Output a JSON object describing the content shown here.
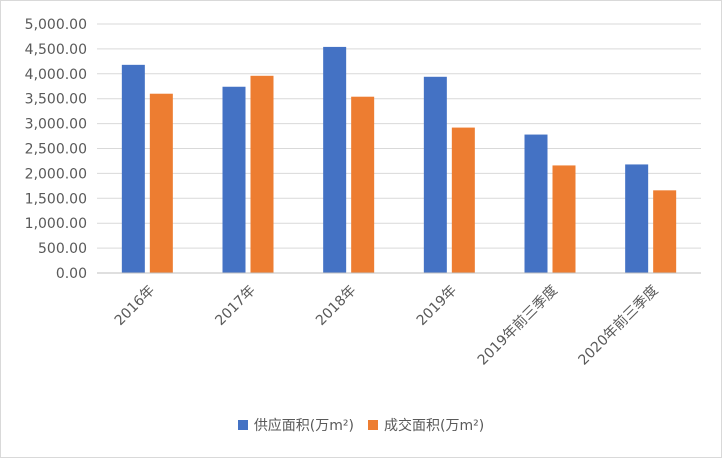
{
  "chart_data": {
    "type": "bar",
    "categories": [
      "2016年",
      "2017年",
      "2018年",
      "2019年",
      "2019年前三季度",
      "2020年前三季度"
    ],
    "series": [
      {
        "name": "供应面积(万m²)",
        "color": "#4472c4",
        "values": [
          4180,
          3740,
          4540,
          3940,
          2780,
          2180
        ]
      },
      {
        "name": "成交面积(万m²)",
        "color": "#ed7d31",
        "values": [
          3600,
          3960,
          3540,
          2920,
          2160,
          1660
        ]
      }
    ],
    "ylim": [
      0,
      5000
    ],
    "yticks": [
      0,
      500,
      1000,
      1500,
      2000,
      2500,
      3000,
      3500,
      4000,
      4500,
      5000
    ],
    "ytick_labels": [
      "0.00",
      "500.00",
      "1,000.00",
      "1,500.00",
      "2,000.00",
      "2,500.00",
      "3,000.00",
      "3,500.00",
      "4,000.00",
      "4,500.00",
      "5,000.00"
    ],
    "grid": true,
    "legend_position": "bottom",
    "title": "",
    "xlabel": "",
    "ylabel": ""
  }
}
